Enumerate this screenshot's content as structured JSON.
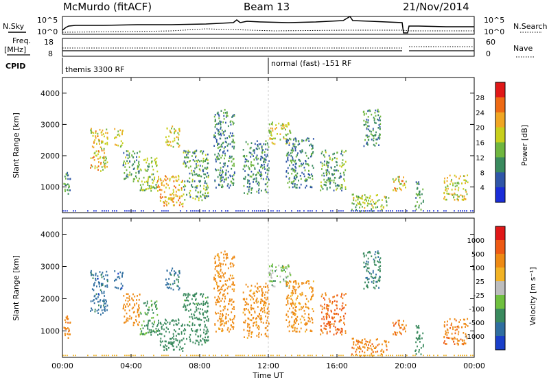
{
  "header": {
    "station": "McMurdo (fitACF)",
    "beam": "Beam 13",
    "date": "21/Nov/2014"
  },
  "aux": {
    "nsky_label": "N.Sky",
    "nsearch_label": "N.Search",
    "freq_label": "Freq.",
    "freq_unit": "[MHz]",
    "nave_label": "Nave",
    "cpid_label": "CPID",
    "noise_ticks_left": [
      "10^5",
      "10^0"
    ],
    "noise_ticks_right": [
      "10^5",
      "10^0"
    ],
    "freq_ticks": [
      "18",
      "8"
    ],
    "nave_ticks": [
      "60",
      "0"
    ],
    "cpid_segments": [
      {
        "text": "themis 3300 RF",
        "start": "00:00"
      },
      {
        "text": "normal (fast) -151 RF",
        "start": "12:00"
      }
    ]
  },
  "x_axis": {
    "title": "Time UT",
    "ticks": [
      "00:00",
      "04:00",
      "08:00",
      "12:00",
      "16:00",
      "20:00",
      "00:00"
    ]
  },
  "power_panel": {
    "ylabel": "Slant Range [km]",
    "yticks": [
      "4000",
      "3000",
      "2000",
      "1000"
    ],
    "colorbar_label": "Power [dB]",
    "colorbar_ticks": [
      "28",
      "24",
      "20",
      "16",
      "12",
      "8",
      "4"
    ],
    "colors": [
      "#1a2dd8",
      "#2f56a8",
      "#3a8a5e",
      "#6fb63f",
      "#c8cf1c",
      "#f0a623",
      "#ee6a14",
      "#e01818"
    ]
  },
  "velocity_panel": {
    "ylabel": "Slant Range [km]",
    "yticks": [
      "4000",
      "3000",
      "2000",
      "1000"
    ],
    "colorbar_label": "Velocity [m s⁻¹]",
    "colorbar_ticks": [
      "1000",
      "500",
      "100",
      "25",
      "-25",
      "-100",
      "-500",
      "-1000"
    ],
    "colors": [
      "#1a3fc9",
      "#2f6ea0",
      "#3a8a5e",
      "#6fc03f",
      "#bdbdbd",
      "#f2b325",
      "#ee8a14",
      "#ee5a14",
      "#e01818"
    ]
  },
  "chart_data": {
    "type": "heatmap",
    "x_unit": "hours UT",
    "xlim": [
      0,
      24
    ],
    "ylim": [
      180,
      4500
    ],
    "power_clim": [
      0,
      32
    ],
    "velocity_clim": [
      -1200,
      1200
    ],
    "regions": [
      {
        "t0": 0.0,
        "t1": 0.5,
        "r0": 800,
        "r1": 1500,
        "power": 10,
        "velocity": -400
      },
      {
        "t0": 1.6,
        "t1": 2.6,
        "r0": 1500,
        "r1": 2900,
        "power": 20,
        "velocity": 700
      },
      {
        "t0": 3.0,
        "t1": 3.5,
        "r0": 2300,
        "r1": 2900,
        "power": 18,
        "velocity": 800
      },
      {
        "t0": 3.5,
        "t1": 4.5,
        "r0": 1200,
        "r1": 2200,
        "power": 12,
        "velocity": -300
      },
      {
        "t0": 4.5,
        "t1": 5.5,
        "r0": 900,
        "r1": 2000,
        "power": 14,
        "velocity": 120
      },
      {
        "t0": 5.5,
        "t1": 7.0,
        "r0": 400,
        "r1": 1400,
        "power": 22,
        "velocity": 300
      },
      {
        "t0": 6.0,
        "t1": 6.8,
        "r0": 2300,
        "r1": 3000,
        "power": 18,
        "velocity": 600
      },
      {
        "t0": 7.0,
        "t1": 8.5,
        "r0": 600,
        "r1": 2200,
        "power": 12,
        "velocity": 200
      },
      {
        "t0": 8.8,
        "t1": 10.0,
        "r0": 1000,
        "r1": 3500,
        "power": 10,
        "velocity": -200
      },
      {
        "t0": 10.5,
        "t1": 12.0,
        "r0": 800,
        "r1": 2500,
        "power": 10,
        "velocity": -200
      },
      {
        "t0": 12.0,
        "t1": 13.3,
        "r0": 2400,
        "r1": 3100,
        "power": 18,
        "velocity": 60
      },
      {
        "t0": 13.0,
        "t1": 14.6,
        "r0": 1000,
        "r1": 2600,
        "power": 10,
        "velocity": -150
      },
      {
        "t0": 15.0,
        "t1": 16.5,
        "r0": 900,
        "r1": 2200,
        "power": 12,
        "velocity": -600
      },
      {
        "t0": 16.8,
        "t1": 19.0,
        "r0": 250,
        "r1": 800,
        "power": 16,
        "velocity": -400
      },
      {
        "t0": 17.5,
        "t1": 18.5,
        "r0": 2300,
        "r1": 3500,
        "power": 10,
        "velocity": 400
      },
      {
        "t0": 19.2,
        "t1": 20.0,
        "r0": 900,
        "r1": 1400,
        "power": 20,
        "velocity": -500
      },
      {
        "t0": 20.5,
        "t1": 21.0,
        "r0": 300,
        "r1": 1200,
        "power": 10,
        "velocity": 300
      },
      {
        "t0": 22.2,
        "t1": 23.6,
        "r0": 600,
        "r1": 1400,
        "power": 18,
        "velocity": -400
      }
    ]
  }
}
